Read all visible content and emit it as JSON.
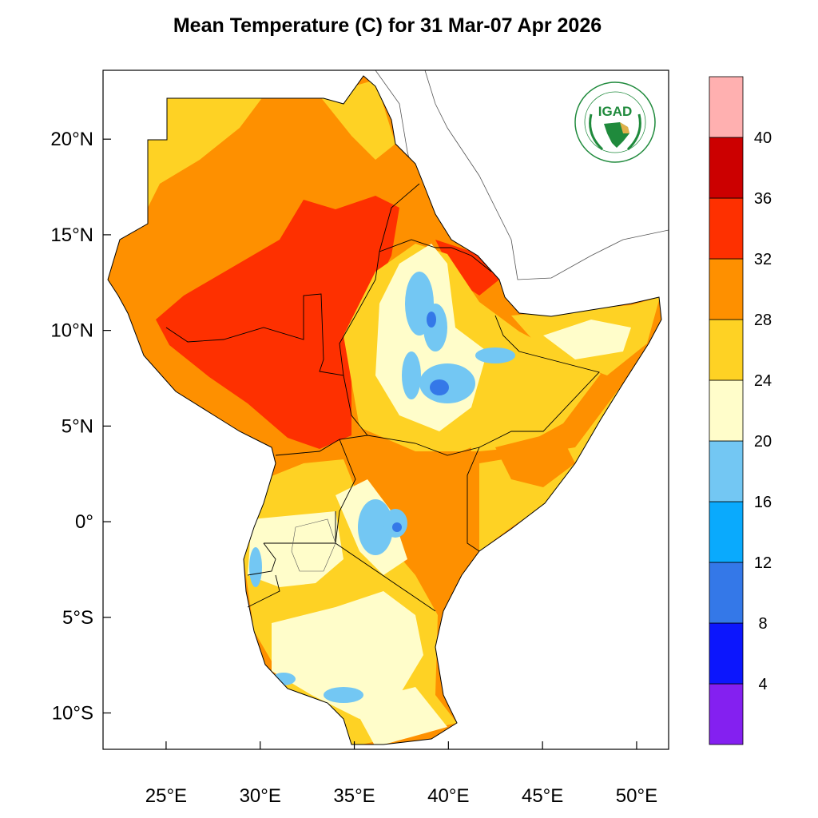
{
  "title": "Mean Temperature (C) for 31 Mar-07 Apr 2026",
  "map": {
    "lon_range": [
      21.65,
      51.7
    ],
    "lat_range": [
      -11.9,
      23.6
    ],
    "x_ticks": [
      {
        "value": 25,
        "label": "25°E"
      },
      {
        "value": 30,
        "label": "30°E"
      },
      {
        "value": 35,
        "label": "35°E"
      },
      {
        "value": 40,
        "label": "40°E"
      },
      {
        "value": 45,
        "label": "45°E"
      },
      {
        "value": 50,
        "label": "50°E"
      }
    ],
    "y_ticks": [
      {
        "value": 20,
        "label": "20°N"
      },
      {
        "value": 15,
        "label": "15°N"
      },
      {
        "value": 10,
        "label": "10°N"
      },
      {
        "value": 5,
        "label": "5°N"
      },
      {
        "value": 0,
        "label": "0°"
      },
      {
        "value": -5,
        "label": "5°S"
      },
      {
        "value": -10,
        "label": "10°S"
      }
    ]
  },
  "colorbar": {
    "levels": [
      4,
      8,
      12,
      16,
      20,
      24,
      28,
      32,
      36,
      40
    ],
    "colors": [
      "#8420f0",
      "#0c16fd",
      "#3478e8",
      "#0aaafd",
      "#73c7f3",
      "#fffdca",
      "#fed224",
      "#fe9000",
      "#fe3000",
      "#cc0000",
      "#ffb0b0"
    ]
  },
  "logo": {
    "name": "IGAD",
    "outer_text": "INTERGOVERNMENTAL AUTHORITY ON DEVELOPMENT",
    "inner_text": "AUTORITE INTERGOUVERNEMENTALE POUR LE DEVELOPPEMENT",
    "green": "#1f8a3c",
    "gold": "#e0b04a"
  }
}
